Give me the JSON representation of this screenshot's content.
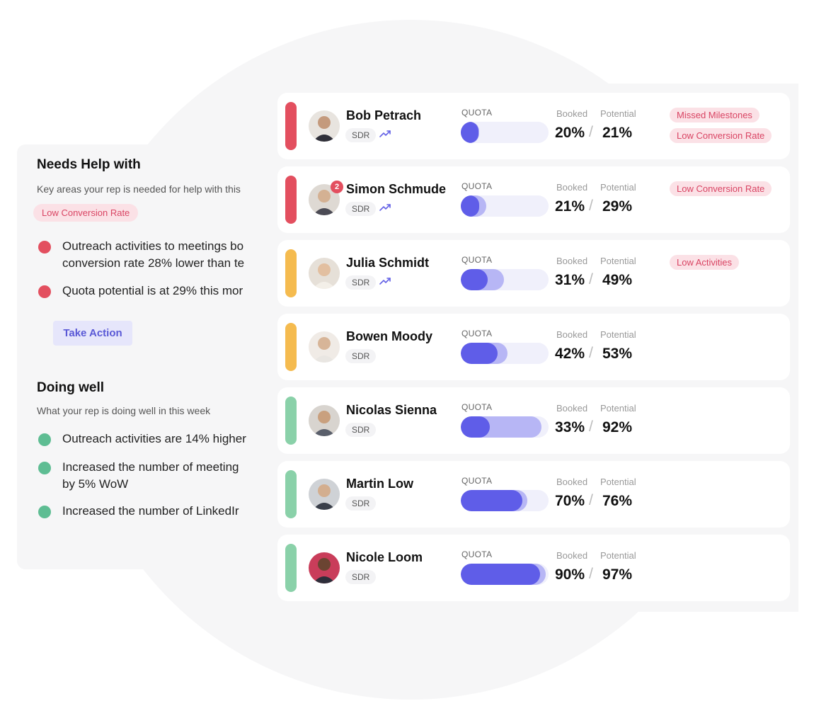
{
  "needs_help": {
    "title": "Needs Help with",
    "subtitle": "Key areas your rep is needed for help with this",
    "tag": "Low Conversion Rate",
    "bullets": [
      {
        "line1": "Outreach activities to meetings bo",
        "line2": "conversion rate 28% lower than te"
      },
      {
        "line1": "Quota potential is at 29% this mor"
      }
    ],
    "action_label": "Take Action"
  },
  "doing_well": {
    "title": "Doing well",
    "subtitle": "What your rep is doing well in this week",
    "bullets": [
      {
        "line1": "Outreach activities are 14% higher"
      },
      {
        "line1": "Increased the number of  meeting",
        "line2": "by 5% WoW"
      },
      {
        "line1": "Increased the number of  LinkedIr"
      }
    ]
  },
  "reps_labels": {
    "quota": "QUOTA",
    "booked": "Booked",
    "potential": "Potential",
    "slash": "/"
  },
  "colors": {
    "red": "#e34f5f",
    "yellow": "#f5bb4f",
    "green": "#8ad1a9",
    "accent": "#5f5de8"
  },
  "reps": [
    {
      "name": "Bob Petrach",
      "role": "SDR",
      "trend": true,
      "status": "red",
      "booked": 20,
      "potential": 21,
      "booked_text": "20%",
      "potential_text": "21%",
      "tags": [
        "Missed Milestones",
        "Low Conversion Rate"
      ]
    },
    {
      "name": "Simon Schmude",
      "role": "SDR",
      "trend": true,
      "status": "red",
      "booked": 21,
      "potential": 29,
      "booked_text": "21%",
      "potential_text": "29%",
      "notification": "2",
      "tags": [
        "Low Conversion Rate"
      ]
    },
    {
      "name": "Julia Schmidt",
      "role": "SDR",
      "trend": true,
      "status": "yellow",
      "booked": 31,
      "potential": 49,
      "booked_text": "31%",
      "potential_text": "49%",
      "tags": [
        "Low Activities"
      ]
    },
    {
      "name": "Bowen Moody",
      "role": "SDR",
      "trend": false,
      "status": "yellow",
      "booked": 42,
      "potential": 53,
      "booked_text": "42%",
      "potential_text": "53%",
      "tags": []
    },
    {
      "name": "Nicolas Sienna",
      "role": "SDR",
      "trend": false,
      "status": "green",
      "booked": 33,
      "potential": 92,
      "booked_text": "33%",
      "potential_text": "92%",
      "tags": []
    },
    {
      "name": "Martin Low",
      "role": "SDR",
      "trend": false,
      "status": "green",
      "booked": 70,
      "potential": 76,
      "booked_text": "70%",
      "potential_text": "76%",
      "tags": []
    },
    {
      "name": "Nicole Loom",
      "role": "SDR",
      "trend": false,
      "status": "green",
      "booked": 90,
      "potential": 97,
      "booked_text": "90%",
      "potential_text": "97%",
      "tags": []
    }
  ]
}
